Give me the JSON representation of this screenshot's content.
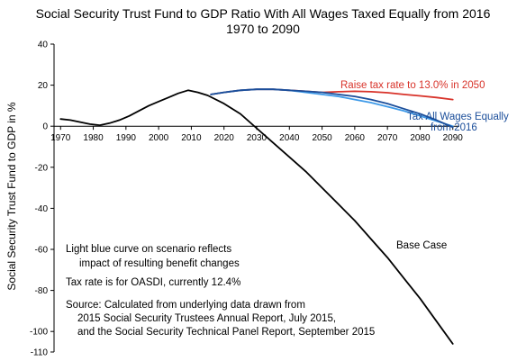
{
  "chart_data": {
    "type": "line",
    "title": "Social Security Trust Fund to GDP Ratio With All Wages Taxed Equally from 2016",
    "subtitle": "1970 to 2090",
    "ylabel": "Social Security Trust Fund to GDP in %",
    "xlabel": "",
    "xlim": [
      1968,
      2092
    ],
    "ylim": [
      -110,
      40
    ],
    "x_ticks": [
      1970,
      1980,
      1990,
      2000,
      2010,
      2020,
      2030,
      2040,
      2050,
      2060,
      2070,
      2080,
      2090
    ],
    "y_ticks": [
      40,
      20,
      0,
      -20,
      -40,
      -60,
      -80,
      -100,
      -110
    ],
    "grid": false,
    "series": [
      {
        "name": "Base Case",
        "color": "#000000",
        "x": [
          1970,
          1973,
          1976,
          1979,
          1982,
          1985,
          1988,
          1991,
          1994,
          1997,
          2000,
          2003,
          2006,
          2009,
          2012,
          2015,
          2020,
          2025,
          2030,
          2035,
          2040,
          2045,
          2050,
          2055,
          2060,
          2065,
          2070,
          2075,
          2080,
          2085,
          2090
        ],
        "y": [
          3.5,
          3.0,
          2.0,
          1.0,
          0.5,
          1.5,
          3.0,
          5.0,
          7.5,
          10.0,
          12.0,
          14.0,
          16.0,
          17.5,
          16.5,
          15.0,
          11.0,
          6.0,
          -1.0,
          -8.0,
          -15.0,
          -22.0,
          -30.0,
          -38.0,
          -46.0,
          -55.0,
          -64.0,
          -74.0,
          -84.0,
          -95.0,
          -106.0
        ]
      },
      {
        "name": "Raise tax rate to 13.0% in 2050",
        "color": "#d8332a",
        "x": [
          2016,
          2020,
          2025,
          2030,
          2035,
          2040,
          2045,
          2050,
          2055,
          2060,
          2065,
          2070,
          2075,
          2080,
          2085,
          2090
        ],
        "y": [
          15.5,
          16.5,
          17.5,
          18.0,
          18.0,
          17.5,
          17.0,
          16.5,
          16.8,
          17.0,
          16.8,
          16.3,
          15.5,
          14.8,
          14.0,
          13.0
        ]
      },
      {
        "name": "Tax All Wages Equally from 2016",
        "color": "#1b4e9a",
        "x": [
          2016,
          2020,
          2025,
          2030,
          2035,
          2040,
          2045,
          2050,
          2055,
          2060,
          2065,
          2070,
          2075,
          2080,
          2085,
          2090
        ],
        "y": [
          15.5,
          16.5,
          17.5,
          18.0,
          18.0,
          17.5,
          17.0,
          16.5,
          15.5,
          14.5,
          13.0,
          11.0,
          8.5,
          6.0,
          3.0,
          -0.5
        ]
      },
      {
        "name": "Light blue scenario",
        "color": "#3e9ae8",
        "x": [
          2016,
          2020,
          2025,
          2030,
          2035,
          2040,
          2045,
          2050,
          2055,
          2060,
          2065,
          2070,
          2075,
          2080,
          2085,
          2090
        ],
        "y": [
          15.5,
          16.5,
          17.5,
          18.0,
          18.0,
          17.5,
          16.5,
          15.5,
          14.5,
          13.0,
          11.5,
          9.5,
          7.5,
          5.0,
          2.5,
          0.0
        ]
      }
    ],
    "series_labels": {
      "raise_tax": "Raise tax rate to 13.0% in 2050",
      "tax_all_wages_line1": "Tax All Wages Equally",
      "tax_all_wages_line2": "from 2016",
      "base_case": "Base Case"
    },
    "annotations": {
      "note1_line1": "Light blue curve on scenario reflects",
      "note1_line2": "impact of resulting benefit changes",
      "note2": "Tax rate is for OASDI, currently 12.4%",
      "source_line1": "Source:  Calculated from underlying data drawn from",
      "source_line2": "2015 Social Security Trustees Annual Report, July 2015,",
      "source_line3": "and the Social Security Technical Panel Report, September 2015"
    }
  }
}
